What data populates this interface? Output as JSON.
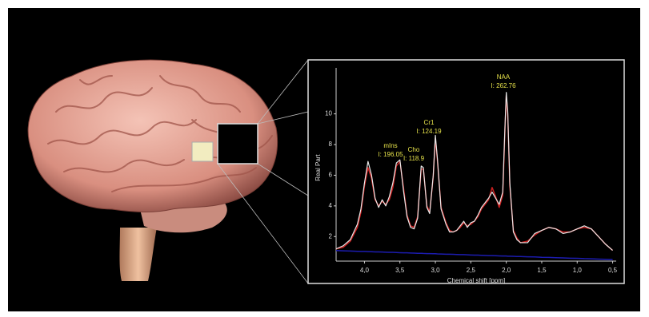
{
  "chart_data": {
    "type": "line",
    "xlabel": "Chemical shift [ppm]",
    "ylabel": "Real Part",
    "xlim": [
      4.4,
      0.45
    ],
    "ylim": [
      0.4,
      13
    ],
    "xticks": [
      {
        "value": 4,
        "label": "4,0"
      },
      {
        "value": 3.5,
        "label": "3,5"
      },
      {
        "value": 3,
        "label": "3,0"
      },
      {
        "value": 2.5,
        "label": "2,5"
      },
      {
        "value": 2,
        "label": "2,0"
      },
      {
        "value": 1.5,
        "label": "1,5"
      },
      {
        "value": 1,
        "label": "1,0"
      },
      {
        "value": 0.5,
        "label": "0,5"
      }
    ],
    "yticks": [
      2,
      4,
      6,
      8,
      10
    ],
    "x": [
      4.4,
      4.3,
      4.2,
      4.1,
      4.05,
      4.0,
      3.95,
      3.9,
      3.85,
      3.8,
      3.75,
      3.7,
      3.65,
      3.6,
      3.55,
      3.5,
      3.45,
      3.4,
      3.35,
      3.3,
      3.25,
      3.2,
      3.17,
      3.12,
      3.08,
      3.03,
      3.0,
      2.97,
      2.92,
      2.85,
      2.8,
      2.75,
      2.7,
      2.65,
      2.6,
      2.55,
      2.5,
      2.45,
      2.4,
      2.35,
      2.3,
      2.25,
      2.2,
      2.15,
      2.1,
      2.05,
      2.02,
      2.0,
      1.98,
      1.95,
      1.9,
      1.85,
      1.8,
      1.7,
      1.6,
      1.5,
      1.4,
      1.3,
      1.2,
      1.1,
      1.0,
      0.9,
      0.8,
      0.7,
      0.6,
      0.5
    ],
    "series": [
      {
        "color": "#cc2020",
        "values": [
          1.2,
          1.3,
          1.7,
          2.6,
          3.6,
          5.3,
          6.5,
          5.8,
          4.4,
          4.0,
          4.3,
          4.1,
          4.4,
          5.2,
          6.6,
          6.9,
          5.2,
          3.4,
          2.7,
          2.6,
          3.3,
          6.4,
          6.4,
          4.0,
          3.6,
          5.9,
          8.4,
          6.9,
          3.9,
          2.9,
          2.4,
          2.3,
          2.4,
          2.6,
          2.9,
          2.7,
          2.8,
          3.0,
          3.3,
          3.8,
          4.1,
          4.4,
          5.2,
          4.6,
          3.9,
          4.7,
          8.8,
          11.2,
          10.0,
          5.3,
          2.4,
          1.9,
          1.6,
          1.7,
          2.1,
          2.4,
          2.6,
          2.5,
          2.3,
          2.3,
          2.5,
          2.6,
          2.5,
          2.0,
          1.5,
          1.1
        ]
      },
      {
        "color": "#e8e8e8",
        "values": [
          1.2,
          1.4,
          1.8,
          2.8,
          3.8,
          5.5,
          6.9,
          6.0,
          4.5,
          3.9,
          4.4,
          4.0,
          4.6,
          5.5,
          6.8,
          7.0,
          5.0,
          3.3,
          2.6,
          2.5,
          3.2,
          6.6,
          6.5,
          3.9,
          3.5,
          6.0,
          8.6,
          7.0,
          3.8,
          2.8,
          2.3,
          2.3,
          2.4,
          2.7,
          3.0,
          2.6,
          2.9,
          3.0,
          3.4,
          3.9,
          4.2,
          4.5,
          4.9,
          4.5,
          4.1,
          4.9,
          9.0,
          11.4,
          10.2,
          5.5,
          2.3,
          1.8,
          1.6,
          1.6,
          2.2,
          2.4,
          2.6,
          2.5,
          2.2,
          2.3,
          2.5,
          2.7,
          2.5,
          2.0,
          1.5,
          1.1
        ]
      },
      {
        "color": "#1c1cb0",
        "values": [
          1.09,
          1.07,
          1.06,
          1.04,
          1.03,
          1.03,
          1.02,
          1.01,
          1.0,
          1.0,
          0.99,
          0.98,
          0.97,
          0.97,
          0.96,
          0.95,
          0.94,
          0.94,
          0.93,
          0.92,
          0.91,
          0.91,
          0.9,
          0.89,
          0.89,
          0.88,
          0.88,
          0.87,
          0.86,
          0.85,
          0.85,
          0.84,
          0.83,
          0.82,
          0.82,
          0.81,
          0.8,
          0.79,
          0.79,
          0.78,
          0.77,
          0.76,
          0.76,
          0.75,
          0.74,
          0.73,
          0.73,
          0.73,
          0.72,
          0.72,
          0.71,
          0.7,
          0.7,
          0.68,
          0.67,
          0.65,
          0.64,
          0.62,
          0.61,
          0.59,
          0.58,
          0.56,
          0.55,
          0.53,
          0.52,
          0.5
        ]
      }
    ],
    "annotations": [
      {
        "name": "mIns",
        "text": "I: 196.05"
      },
      {
        "name": "Cho",
        "text": "I: 118.9"
      },
      {
        "name": "Cr1",
        "text": "I: 124.19"
      },
      {
        "name": "NAA",
        "text": "I: 262.76"
      }
    ]
  }
}
